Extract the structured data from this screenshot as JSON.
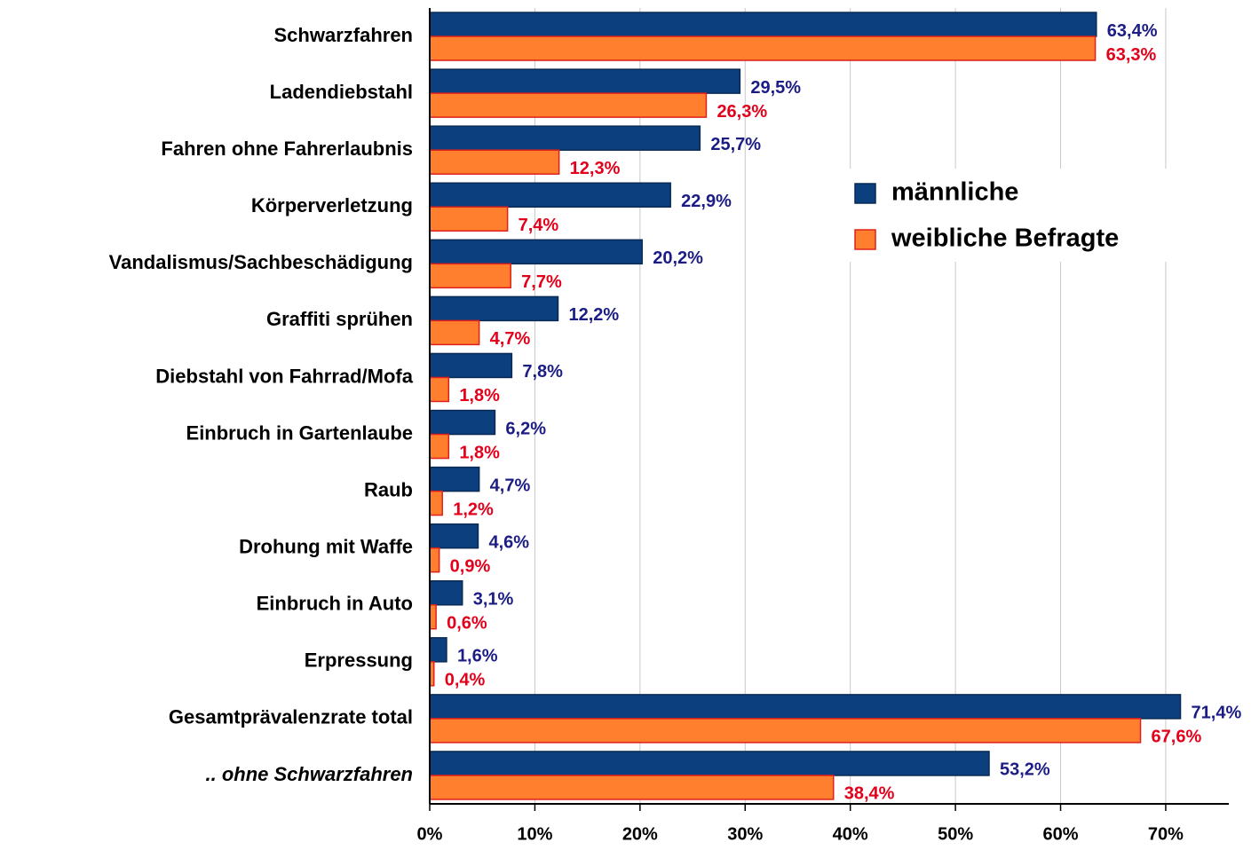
{
  "chart_data": {
    "type": "barh",
    "categories": [
      "Schwarzfahren",
      "Ladendiebstahl",
      "Fahren ohne Fahrerlaubnis",
      "Körperverletzung",
      "Vandalismus/Sachbeschädigung",
      "Graffiti sprühen",
      "Diebstahl von Fahrrad/Mofa",
      "Einbruch in Gartenlaube",
      "Raub",
      "Drohung mit Waffe",
      "Einbruch in Auto",
      "Erpressung",
      "Gesamtprävalenzrate total",
      ".. ohne Schwarzfahren"
    ],
    "series": [
      {
        "name": "männliche",
        "color": "#0b3f7e",
        "edge": "#0a2a55",
        "label_color": "#1c1c85",
        "values": [
          63.4,
          29.5,
          25.7,
          22.9,
          20.2,
          12.2,
          7.8,
          6.2,
          4.7,
          4.6,
          3.1,
          1.6,
          71.4,
          53.2
        ],
        "value_labels": [
          "63,4%",
          "29,5%",
          "25,7%",
          "22,9%",
          "20,2%",
          "12,2%",
          "7,8%",
          "6,2%",
          "4,7%",
          "4,6%",
          "3,1%",
          "1,6%",
          "71,4%",
          "53,2%"
        ]
      },
      {
        "name": "weibliche Befragte",
        "color": "#ff7f2f",
        "edge": "#e0201a",
        "label_color": "#e3001b",
        "values": [
          63.3,
          26.3,
          12.3,
          7.4,
          7.7,
          4.7,
          1.8,
          1.8,
          1.2,
          0.9,
          0.6,
          0.4,
          67.6,
          38.4
        ],
        "value_labels": [
          "63,3%",
          "26,3%",
          "12,3%",
          "7,4%",
          "7,7%",
          "4,7%",
          "1,8%",
          "1,8%",
          "1,2%",
          "0,9%",
          "0,6%",
          "0,4%",
          "67,6%",
          "38,4%"
        ]
      }
    ],
    "xlim": [
      0,
      76
    ],
    "xticks": [
      {
        "value": 0,
        "label": "0%"
      },
      {
        "value": 10,
        "label": "10%"
      },
      {
        "value": 20,
        "label": "20%"
      },
      {
        "value": 30,
        "label": "30%"
      },
      {
        "value": 40,
        "label": "40%"
      },
      {
        "value": 50,
        "label": "50%"
      },
      {
        "value": 60,
        "label": "60%"
      },
      {
        "value": 70,
        "label": "70%"
      }
    ],
    "grid": true
  }
}
